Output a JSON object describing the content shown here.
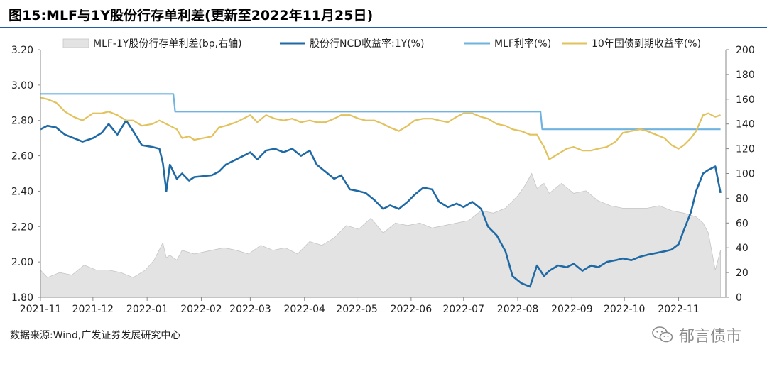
{
  "header": {
    "title": "图15:MLF与1Y股份行存单利差(更新至2022年11月25日)"
  },
  "footer": {
    "source": "数据来源:Wind,广发证券发展研究中心",
    "watermark": "郁言债市"
  },
  "colors": {
    "spread": "#e3e3e3",
    "spread_edge": "#c6c6c6",
    "ncd": "#1f6aa5",
    "mlf": "#6fb3e0",
    "bond": "#e2c25c",
    "title_rule": "#1f5f9f"
  },
  "chart_data": {
    "type": "line",
    "xlabel": "",
    "ylabel": "",
    "ylim": [
      1.8,
      3.2
    ],
    "ylim_right": [
      0,
      200
    ],
    "x_ticks": [
      "2021-11",
      "2021-12",
      "2022-01",
      "2022-02",
      "2022-03",
      "2022-04",
      "2022-05",
      "2022-06",
      "2022-07",
      "2022-08",
      "2022-09",
      "2022-10",
      "2022-11"
    ],
    "y_ticks": [
      "1.80",
      "2.00",
      "2.20",
      "2.40",
      "2.60",
      "2.80",
      "3.00",
      "3.20"
    ],
    "y_ticks_right": [
      "0",
      "20",
      "40",
      "60",
      "80",
      "100",
      "120",
      "140",
      "160",
      "180",
      "200"
    ],
    "legend_position": "top",
    "grid": false,
    "series": [
      {
        "name": "MLF-1Y股份行存单利差(bp,右轴)",
        "type": "area",
        "axis": "right",
        "x": [
          "2021-11-01",
          "2021-11-05",
          "2021-11-12",
          "2021-11-19",
          "2021-11-26",
          "2021-12-03",
          "2021-12-10",
          "2021-12-17",
          "2021-12-24",
          "2021-12-31",
          "2022-01-05",
          "2022-01-10",
          "2022-01-12",
          "2022-01-14",
          "2022-01-18",
          "2022-01-21",
          "2022-01-28",
          "2022-02-07",
          "2022-02-14",
          "2022-02-21",
          "2022-02-28",
          "2022-03-07",
          "2022-03-14",
          "2022-03-21",
          "2022-03-28",
          "2022-04-04",
          "2022-04-11",
          "2022-04-18",
          "2022-04-25",
          "2022-05-02",
          "2022-05-09",
          "2022-05-16",
          "2022-05-23",
          "2022-05-30",
          "2022-06-06",
          "2022-06-13",
          "2022-06-20",
          "2022-06-27",
          "2022-07-04",
          "2022-07-11",
          "2022-07-18",
          "2022-07-25",
          "2022-08-01",
          "2022-08-05",
          "2022-08-09",
          "2022-08-12",
          "2022-08-16",
          "2022-08-19",
          "2022-08-26",
          "2022-09-02",
          "2022-09-09",
          "2022-09-16",
          "2022-09-23",
          "2022-09-30",
          "2022-10-07",
          "2022-10-14",
          "2022-10-21",
          "2022-10-28",
          "2022-11-04",
          "2022-11-11",
          "2022-11-15",
          "2022-11-18",
          "2022-11-22",
          "2022-11-25"
        ],
        "values": [
          22,
          16,
          20,
          18,
          26,
          22,
          22,
          20,
          16,
          22,
          30,
          44,
          32,
          34,
          30,
          38,
          35,
          38,
          40,
          38,
          35,
          42,
          38,
          40,
          35,
          45,
          42,
          48,
          58,
          55,
          64,
          52,
          60,
          58,
          60,
          56,
          58,
          60,
          62,
          70,
          68,
          72,
          82,
          90,
          100,
          88,
          92,
          84,
          92,
          84,
          86,
          78,
          74,
          72,
          72,
          72,
          74,
          70,
          68,
          65,
          60,
          52,
          22,
          38
        ]
      },
      {
        "name": "股份行NCD收益率:1Y(%)",
        "type": "line",
        "axis": "left",
        "x": [
          "2021-11-01",
          "2021-11-05",
          "2021-11-10",
          "2021-11-15",
          "2021-11-20",
          "2021-11-25",
          "2021-12-01",
          "2021-12-06",
          "2021-12-10",
          "2021-12-15",
          "2021-12-20",
          "2021-12-24",
          "2021-12-29",
          "2022-01-04",
          "2022-01-08",
          "2022-01-10",
          "2022-01-12",
          "2022-01-14",
          "2022-01-18",
          "2022-01-21",
          "2022-01-25",
          "2022-01-28",
          "2022-02-07",
          "2022-02-11",
          "2022-02-15",
          "2022-02-21",
          "2022-02-25",
          "2022-03-01",
          "2022-03-05",
          "2022-03-10",
          "2022-03-15",
          "2022-03-20",
          "2022-03-25",
          "2022-03-30",
          "2022-04-04",
          "2022-04-08",
          "2022-04-13",
          "2022-04-18",
          "2022-04-22",
          "2022-04-27",
          "2022-05-02",
          "2022-05-06",
          "2022-05-11",
          "2022-05-16",
          "2022-05-20",
          "2022-05-25",
          "2022-05-30",
          "2022-06-03",
          "2022-06-08",
          "2022-06-13",
          "2022-06-17",
          "2022-06-22",
          "2022-06-27",
          "2022-07-01",
          "2022-07-06",
          "2022-07-11",
          "2022-07-15",
          "2022-07-20",
          "2022-07-25",
          "2022-07-29",
          "2022-08-03",
          "2022-08-08",
          "2022-08-12",
          "2022-08-16",
          "2022-08-19",
          "2022-08-24",
          "2022-08-29",
          "2022-09-02",
          "2022-09-07",
          "2022-09-12",
          "2022-09-16",
          "2022-09-21",
          "2022-09-26",
          "2022-09-30",
          "2022-10-05",
          "2022-10-10",
          "2022-10-14",
          "2022-10-19",
          "2022-10-24",
          "2022-10-28",
          "2022-11-01",
          "2022-11-04",
          "2022-11-08",
          "2022-11-11",
          "2022-11-15",
          "2022-11-18",
          "2022-11-22",
          "2022-11-25"
        ],
        "values": [
          2.75,
          2.77,
          2.76,
          2.72,
          2.7,
          2.68,
          2.7,
          2.73,
          2.78,
          2.72,
          2.8,
          2.74,
          2.66,
          2.65,
          2.64,
          2.56,
          2.4,
          2.55,
          2.47,
          2.5,
          2.46,
          2.48,
          2.49,
          2.51,
          2.55,
          2.58,
          2.6,
          2.62,
          2.58,
          2.63,
          2.64,
          2.62,
          2.64,
          2.6,
          2.63,
          2.55,
          2.51,
          2.47,
          2.49,
          2.41,
          2.4,
          2.39,
          2.35,
          2.3,
          2.32,
          2.3,
          2.34,
          2.38,
          2.42,
          2.41,
          2.34,
          2.31,
          2.33,
          2.31,
          2.34,
          2.3,
          2.2,
          2.15,
          2.06,
          1.92,
          1.88,
          1.86,
          1.98,
          1.92,
          1.95,
          1.98,
          1.97,
          1.99,
          1.95,
          1.98,
          1.97,
          2.0,
          2.01,
          2.02,
          2.01,
          2.03,
          2.04,
          2.05,
          2.06,
          2.07,
          2.1,
          2.18,
          2.28,
          2.4,
          2.5,
          2.52,
          2.54,
          2.39
        ]
      },
      {
        "name": "MLF利率(%)",
        "type": "line",
        "axis": "left",
        "x": [
          "2021-11-01",
          "2022-01-16",
          "2022-01-17",
          "2022-08-14",
          "2022-08-15",
          "2022-11-25"
        ],
        "values": [
          2.95,
          2.95,
          2.85,
          2.85,
          2.75,
          2.75
        ]
      },
      {
        "name": "10年国债到期收益率(%)",
        "type": "line",
        "axis": "left",
        "x": [
          "2021-11-01",
          "2021-11-05",
          "2021-11-10",
          "2021-11-15",
          "2021-11-20",
          "2021-11-25",
          "2021-12-01",
          "2021-12-06",
          "2021-12-10",
          "2021-12-15",
          "2021-12-20",
          "2021-12-24",
          "2021-12-29",
          "2022-01-04",
          "2022-01-08",
          "2022-01-12",
          "2022-01-18",
          "2022-01-21",
          "2022-01-25",
          "2022-01-28",
          "2022-02-07",
          "2022-02-11",
          "2022-02-15",
          "2022-02-21",
          "2022-02-25",
          "2022-03-01",
          "2022-03-05",
          "2022-03-10",
          "2022-03-15",
          "2022-03-20",
          "2022-03-25",
          "2022-03-30",
          "2022-04-04",
          "2022-04-08",
          "2022-04-13",
          "2022-04-18",
          "2022-04-22",
          "2022-04-27",
          "2022-05-02",
          "2022-05-06",
          "2022-05-11",
          "2022-05-16",
          "2022-05-20",
          "2022-05-25",
          "2022-05-30",
          "2022-06-03",
          "2022-06-08",
          "2022-06-13",
          "2022-06-17",
          "2022-06-22",
          "2022-06-27",
          "2022-07-01",
          "2022-07-06",
          "2022-07-11",
          "2022-07-15",
          "2022-07-20",
          "2022-07-25",
          "2022-07-29",
          "2022-08-03",
          "2022-08-08",
          "2022-08-12",
          "2022-08-16",
          "2022-08-19",
          "2022-08-24",
          "2022-08-29",
          "2022-09-02",
          "2022-09-07",
          "2022-09-12",
          "2022-09-16",
          "2022-09-21",
          "2022-09-26",
          "2022-09-30",
          "2022-10-05",
          "2022-10-10",
          "2022-10-14",
          "2022-10-19",
          "2022-10-24",
          "2022-10-28",
          "2022-11-01",
          "2022-11-04",
          "2022-11-08",
          "2022-11-11",
          "2022-11-15",
          "2022-11-18",
          "2022-11-22",
          "2022-11-25"
        ],
        "values": [
          2.93,
          2.92,
          2.9,
          2.85,
          2.82,
          2.8,
          2.84,
          2.84,
          2.85,
          2.83,
          2.8,
          2.8,
          2.77,
          2.78,
          2.8,
          2.78,
          2.75,
          2.7,
          2.71,
          2.69,
          2.71,
          2.76,
          2.77,
          2.79,
          2.81,
          2.83,
          2.79,
          2.83,
          2.81,
          2.8,
          2.81,
          2.79,
          2.8,
          2.79,
          2.79,
          2.81,
          2.83,
          2.83,
          2.81,
          2.8,
          2.8,
          2.78,
          2.76,
          2.74,
          2.77,
          2.8,
          2.81,
          2.81,
          2.8,
          2.79,
          2.82,
          2.84,
          2.84,
          2.82,
          2.81,
          2.78,
          2.77,
          2.75,
          2.74,
          2.72,
          2.72,
          2.65,
          2.58,
          2.61,
          2.64,
          2.65,
          2.63,
          2.63,
          2.64,
          2.65,
          2.68,
          2.73,
          2.74,
          2.75,
          2.74,
          2.72,
          2.7,
          2.66,
          2.64,
          2.66,
          2.7,
          2.74,
          2.83,
          2.84,
          2.82,
          2.83
        ]
      }
    ]
  }
}
